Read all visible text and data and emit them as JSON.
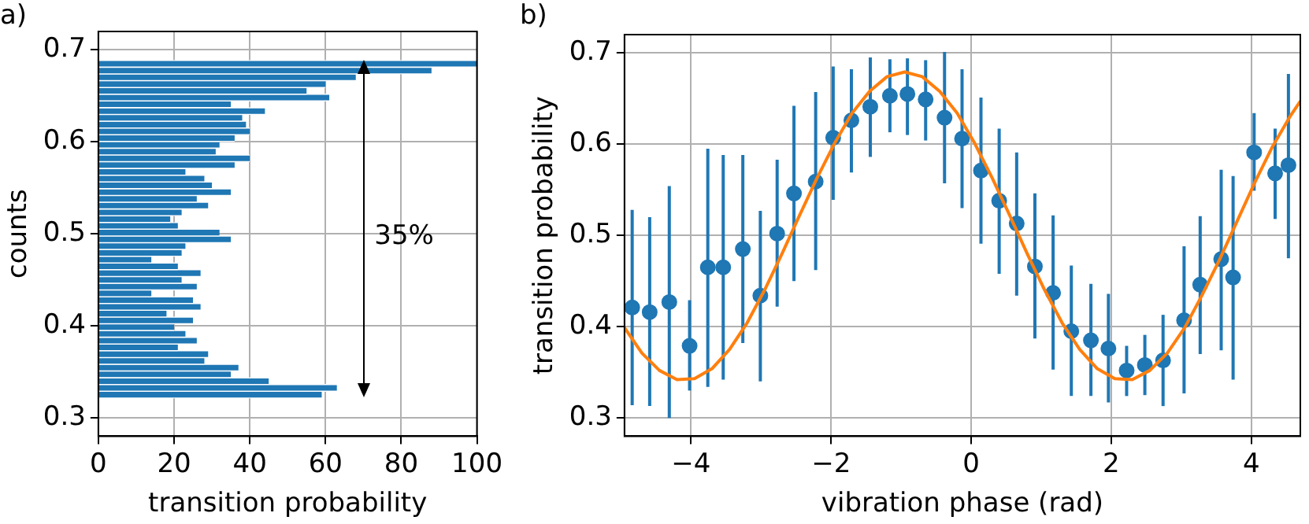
{
  "chart_data": [
    {
      "type": "histogram",
      "title": "a)",
      "orientation": "horizontal",
      "xlabel": "transition probability",
      "ylabel": "counts",
      "color": "#1f77b4",
      "bins": [
        0.3215,
        0.3288,
        0.3362,
        0.3435,
        0.3509,
        0.3582,
        0.3655,
        0.3729,
        0.3802,
        0.3876,
        0.3949,
        0.4022,
        0.4096,
        0.4169,
        0.4243,
        0.4316,
        0.4389,
        0.4463,
        0.4536,
        0.461,
        0.4683,
        0.4756,
        0.483,
        0.4903,
        0.4977,
        0.505,
        0.5123,
        0.5197,
        0.527,
        0.5344,
        0.5417,
        0.549,
        0.5564,
        0.5637,
        0.5711,
        0.5784,
        0.5857,
        0.5931,
        0.6004,
        0.6078,
        0.6151,
        0.6224,
        0.6298,
        0.6371,
        0.6445,
        0.6518,
        0.6591,
        0.6665,
        0.6738,
        0.6812,
        0.6885
      ],
      "values": [
        59,
        63,
        45,
        35,
        37,
        28,
        29,
        21,
        26,
        23,
        20,
        25,
        18,
        27,
        25,
        14,
        26,
        22,
        27,
        21,
        14,
        22,
        23,
        35,
        32,
        21,
        19,
        22,
        29,
        26,
        35,
        30,
        28,
        23,
        36,
        40,
        31,
        32,
        36,
        40,
        39,
        38,
        44,
        35,
        61,
        55,
        60,
        68,
        88,
        100
      ],
      "xlim": [
        0,
        100
      ],
      "xticks": [
        0,
        20,
        40,
        60,
        80,
        100
      ],
      "ylim": [
        0.28,
        0.72
      ],
      "yticks": [
        0.3,
        0.4,
        0.5,
        0.6,
        0.7
      ],
      "grid": true,
      "annotations": [
        "35%"
      ]
    },
    {
      "type": "scatter",
      "title": "b)",
      "xlabel": "vibration phase (rad)",
      "ylabel": "transition probability",
      "xlim": [
        -4.95,
        4.7
      ],
      "xticks": [
        {
          "value": -4,
          "label": "−4"
        },
        {
          "value": -2,
          "label": "−2"
        },
        0,
        2,
        4
      ],
      "ylim": [
        0.28,
        0.72
      ],
      "yticks": [
        0.3,
        0.4,
        0.5,
        0.6,
        0.7
      ],
      "grid": true,
      "series": [
        {
          "type": "scatter",
          "color": "#1f77b4",
          "marker": "circle",
          "x": [
            -4.84,
            -4.59,
            -4.31,
            -4.02,
            -3.76,
            -3.54,
            -3.26,
            -3.01,
            -2.77,
            -2.53,
            -2.22,
            -1.97,
            -1.71,
            -1.44,
            -1.16,
            -0.91,
            -0.65,
            -0.38,
            -0.13,
            0.14,
            0.4,
            0.65,
            0.91,
            1.17,
            1.43,
            1.71,
            1.96,
            2.22,
            2.48,
            2.74,
            3.04,
            3.27,
            3.57,
            3.74,
            4.04,
            4.34,
            4.53
          ],
          "values": [
            0.421,
            0.416,
            0.427,
            0.379,
            0.465,
            0.465,
            0.485,
            0.434,
            0.502,
            0.546,
            0.559,
            0.607,
            0.626,
            0.641,
            0.653,
            0.655,
            0.649,
            0.629,
            0.606,
            0.571,
            0.538,
            0.513,
            0.466,
            0.437,
            0.395,
            0.385,
            0.376,
            0.352,
            0.358,
            0.363,
            0.407,
            0.446,
            0.474,
            0.454,
            0.591,
            0.568,
            0.577
          ],
          "errors": [
            [
              0.314,
              0.528
            ],
            [
              0.313,
              0.52
            ],
            [
              0.3,
              0.554
            ],
            [
              0.33,
              0.429
            ],
            [
              0.334,
              0.595
            ],
            [
              0.342,
              0.588
            ],
            [
              0.382,
              0.588
            ],
            [
              0.34,
              0.527
            ],
            [
              0.422,
              0.583
            ],
            [
              0.45,
              0.642
            ],
            [
              0.462,
              0.657
            ],
            [
              0.539,
              0.685
            ],
            [
              0.569,
              0.682
            ],
            [
              0.586,
              0.695
            ],
            [
              0.613,
              0.693
            ],
            [
              0.61,
              0.694
            ],
            [
              0.604,
              0.692
            ],
            [
              0.557,
              0.701
            ],
            [
              0.53,
              0.682
            ],
            [
              0.491,
              0.651
            ],
            [
              0.458,
              0.617
            ],
            [
              0.434,
              0.591
            ],
            [
              0.387,
              0.546
            ],
            [
              0.353,
              0.522
            ],
            [
              0.324,
              0.467
            ],
            [
              0.324,
              0.447
            ],
            [
              0.317,
              0.436
            ],
            [
              0.324,
              0.379
            ],
            [
              0.325,
              0.391
            ],
            [
              0.313,
              0.413
            ],
            [
              0.327,
              0.488
            ],
            [
              0.37,
              0.521
            ],
            [
              0.374,
              0.572
            ],
            [
              0.342,
              0.565
            ],
            [
              0.549,
              0.634
            ],
            [
              0.518,
              0.617
            ],
            [
              0.475,
              0.677
            ]
          ]
        },
        {
          "type": "line",
          "color": "#ff7f0e",
          "marker": "none",
          "x": [
            -4.95,
            -4.7,
            -4.45,
            -4.2,
            -3.95,
            -3.7,
            -3.45,
            -3.2,
            -2.95,
            -2.7,
            -2.45,
            -2.2,
            -1.95,
            -1.7,
            -1.45,
            -1.2,
            -0.95,
            -0.7,
            -0.45,
            -0.2,
            0.05,
            0.3,
            0.55,
            0.8,
            1.05,
            1.3,
            1.55,
            1.8,
            2.05,
            2.3,
            2.55,
            2.8,
            3.05,
            3.3,
            3.55,
            3.8,
            4.05,
            4.3,
            4.55,
            4.7
          ],
          "values": [
            0.399,
            0.371,
            0.352,
            0.342,
            0.343,
            0.354,
            0.375,
            0.404,
            0.44,
            0.48,
            0.522,
            0.563,
            0.601,
            0.634,
            0.658,
            0.674,
            0.679,
            0.674,
            0.658,
            0.634,
            0.601,
            0.563,
            0.522,
            0.48,
            0.44,
            0.404,
            0.375,
            0.354,
            0.343,
            0.342,
            0.352,
            0.371,
            0.399,
            0.435,
            0.474,
            0.516,
            0.558,
            0.597,
            0.63,
            0.647
          ]
        }
      ]
    }
  ]
}
